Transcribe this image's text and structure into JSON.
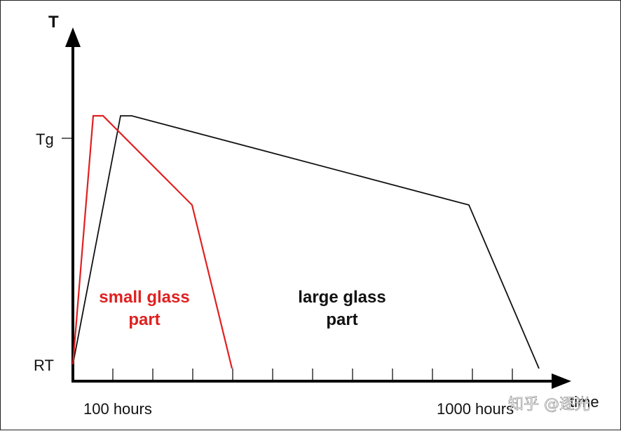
{
  "axes": {
    "y_title": "T",
    "x_title": "time",
    "y_ticks": [
      "Tg",
      "RT"
    ],
    "x_tick_labels": [
      "100 hours",
      "1000 hours"
    ]
  },
  "annotations": {
    "small_line1": "small glass",
    "small_line2": "part",
    "large_line1": "large glass",
    "large_line2": "part"
  },
  "colors": {
    "small": "#e02020",
    "large": "#111111"
  },
  "watermark": "知乎 @逐光"
}
